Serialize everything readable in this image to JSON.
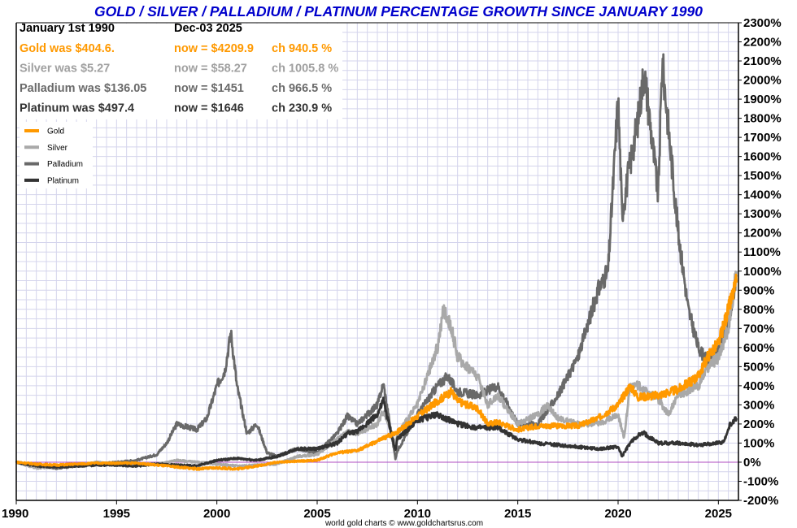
{
  "chart_data": {
    "type": "line",
    "title": "GOLD / SILVER / PALLADIUM / PLATINUM PERCENTAGE GROWTH SINCE JANUARY 1990",
    "credit": "world gold charts © www.goldchartsrus.com",
    "xlabel": "",
    "ylabel": "",
    "xlim": [
      1990,
      2026
    ],
    "ylim": [
      -200,
      2300
    ],
    "x_ticks": [
      1990,
      1995,
      2000,
      2005,
      2010,
      2015,
      2020,
      2025
    ],
    "x_tick_labels": [
      "1990",
      "1995",
      "2000",
      "2005",
      "2010",
      "2015",
      "2020",
      "2025"
    ],
    "y_ticks": [
      -200,
      -100,
      0,
      100,
      200,
      300,
      400,
      500,
      600,
      700,
      800,
      900,
      1000,
      1100,
      1200,
      1300,
      1400,
      1500,
      1600,
      1700,
      1800,
      1900,
      2000,
      2100,
      2200,
      2300
    ],
    "y_tick_labels": [
      "-200%",
      "-100%",
      "0%",
      "100%",
      "200%",
      "300%",
      "400%",
      "500%",
      "600%",
      "700%",
      "800%",
      "900%",
      "1000%",
      "1100%",
      "1200%",
      "1300%",
      "1400%",
      "1500%",
      "1600%",
      "1700%",
      "1800%",
      "1900%",
      "2000%",
      "2100%",
      "2200%",
      "2300%"
    ],
    "grid": true,
    "legend_position": "top-left",
    "info_table": {
      "header": {
        "start": "January 1st 1990",
        "end": "Dec-03  2025"
      },
      "rows": [
        {
          "was": "Gold was $404.6.",
          "now": "now = $4209.9",
          "ch": "ch 940.5 %",
          "color": "#ff9900"
        },
        {
          "was": "Silver was $5.27",
          "now": "now = $58.27",
          "ch": "ch 1005.8 %",
          "color": "#a0a0a0"
        },
        {
          "was": "Palladium was $136.05",
          "now": "now = $1451",
          "ch": "ch 966.5 %",
          "color": "#6a6a6a"
        },
        {
          "was": "Platinum was $497.4",
          "now": "now = $1646",
          "ch": "ch 230.9 %",
          "color": "#333333"
        }
      ]
    },
    "series": [
      {
        "name": "Palladium",
        "color": "#696969",
        "x": [
          1990,
          1991,
          1992,
          1993,
          1994,
          1995,
          1996,
          1997,
          1997.5,
          1998,
          1999,
          1999.5,
          2000,
          2000.4,
          2000.7,
          2001,
          2001.5,
          2002,
          2002.5,
          2003,
          2004,
          2005,
          2006,
          2006.5,
          2007,
          2008,
          2008.3,
          2008.9,
          2009,
          2010,
          2011,
          2011.5,
          2012,
          2013,
          2014,
          2015,
          2016,
          2017,
          2018,
          2019,
          2019.5,
          2020,
          2020.2,
          2020.5,
          2021,
          2021.3,
          2022,
          2022.2,
          2023,
          2023.5,
          2024,
          2024.5,
          2025,
          2025.5,
          2025.9
        ],
        "y": [
          0,
          -20,
          -30,
          -20,
          -10,
          0,
          10,
          40,
          100,
          200,
          170,
          230,
          400,
          480,
          680,
          400,
          150,
          200,
          50,
          30,
          70,
          50,
          150,
          240,
          200,
          300,
          410,
          20,
          60,
          250,
          400,
          450,
          370,
          350,
          400,
          200,
          200,
          350,
          550,
          900,
          1000,
          1900,
          1300,
          1500,
          1800,
          2050,
          1400,
          2100,
          1200,
          800,
          600,
          520,
          600,
          700,
          980
        ]
      },
      {
        "name": "Silver",
        "color": "#a9a9a9",
        "x": [
          1990,
          1991,
          1992,
          1993,
          1994,
          1995,
          1996,
          1997,
          1998,
          1999,
          2000,
          2001,
          2002,
          2003,
          2004,
          2005,
          2006,
          2006.5,
          2007,
          2008,
          2008.3,
          2008.9,
          2009,
          2010,
          2011,
          2011.3,
          2011.7,
          2012,
          2013,
          2013.5,
          2014,
          2015,
          2016,
          2016.5,
          2017,
          2018,
          2019,
          2020,
          2020.3,
          2020.6,
          2021,
          2022,
          2022.5,
          2023,
          2024,
          2024.5,
          2025,
          2025.5,
          2025.9
        ],
        "y": [
          0,
          -30,
          -25,
          -20,
          0,
          -10,
          -10,
          -10,
          10,
          0,
          -10,
          -20,
          -15,
          -10,
          30,
          40,
          120,
          160,
          150,
          200,
          270,
          100,
          150,
          300,
          600,
          800,
          700,
          550,
          450,
          300,
          350,
          200,
          250,
          300,
          230,
          200,
          200,
          250,
          130,
          400,
          400,
          330,
          250,
          350,
          400,
          500,
          550,
          700,
          1000
        ]
      },
      {
        "name": "Platinum",
        "color": "#333333",
        "x": [
          1990,
          1991,
          1992,
          1993,
          1994,
          1995,
          1996,
          1997,
          1998,
          1999,
          2000,
          2001,
          2002,
          2003,
          2004,
          2005,
          2006,
          2006.5,
          2007,
          2008,
          2008.3,
          2008.9,
          2009,
          2010,
          2011,
          2012,
          2013,
          2014,
          2015,
          2016,
          2017,
          2018,
          2019,
          2020,
          2020.2,
          2020.6,
          2021,
          2021.3,
          2022,
          2023,
          2024,
          2025,
          2025.3,
          2025.6,
          2025.9
        ],
        "y": [
          0,
          -20,
          -25,
          -20,
          -15,
          -15,
          -20,
          -10,
          -15,
          -20,
          10,
          20,
          10,
          30,
          70,
          70,
          100,
          150,
          160,
          250,
          320,
          60,
          120,
          220,
          250,
          200,
          180,
          180,
          120,
          100,
          90,
          80,
          70,
          80,
          30,
          100,
          140,
          150,
          100,
          100,
          90,
          100,
          110,
          200,
          230
        ]
      },
      {
        "name": "Gold",
        "color": "#ff9900",
        "x": [
          1990,
          1991,
          1992,
          1993,
          1994,
          1995,
          1996,
          1997,
          1998,
          1999,
          2000,
          2001,
          2002,
          2003,
          2004,
          2005,
          2006,
          2007,
          2008,
          2009,
          2010,
          2011,
          2011.7,
          2012,
          2013,
          2013.5,
          2014,
          2015,
          2016,
          2017,
          2018,
          2019,
          2020,
          2020.6,
          2021,
          2022,
          2023,
          2024,
          2024.5,
          2025,
          2025.5,
          2025.9
        ],
        "y": [
          0,
          -10,
          -15,
          -10,
          -5,
          -5,
          -5,
          -15,
          -25,
          -35,
          -30,
          -35,
          -20,
          0,
          5,
          10,
          50,
          60,
          110,
          160,
          240,
          320,
          370,
          320,
          280,
          200,
          210,
          170,
          190,
          190,
          190,
          230,
          300,
          400,
          340,
          350,
          380,
          450,
          560,
          620,
          800,
          940
        ]
      }
    ]
  }
}
